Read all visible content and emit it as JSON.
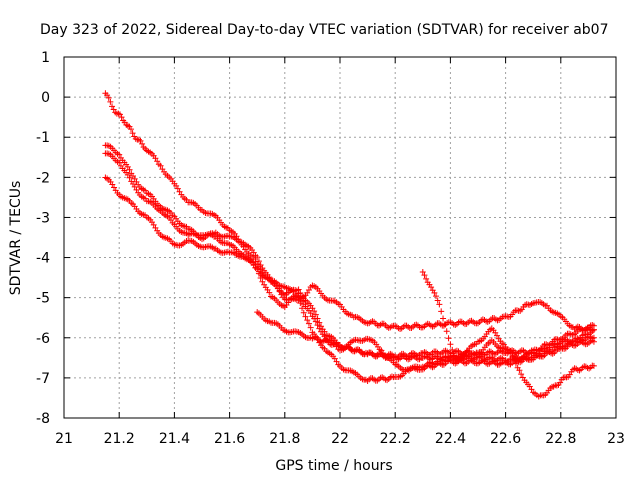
{
  "chart_data": {
    "type": "scatter",
    "title": "Day 323 of 2022, Sidereal Day-to-day VTEC variation (SDTVAR) for receiver ab07",
    "xlabel": "GPS time / hours",
    "ylabel": "SDTVAR / TECUs",
    "xlim": [
      21,
      23
    ],
    "ylim": [
      -8,
      1
    ],
    "xticks": [
      21,
      21.2,
      21.4,
      21.6,
      21.8,
      22,
      22.2,
      22.4,
      22.6,
      22.8,
      23
    ],
    "yticks": [
      1,
      0,
      -1,
      -2,
      -3,
      -4,
      -5,
      -6,
      -7,
      -8
    ],
    "xtick_labels": [
      "21",
      "21.2",
      "21.4",
      "21.6",
      "21.8",
      "22",
      "22.2",
      "22.4",
      "22.6",
      "22.8",
      "23"
    ],
    "ytick_labels": [
      "1",
      "0",
      "-1",
      "-2",
      "-3",
      "-4",
      "-5",
      "-6",
      "-7",
      "-8"
    ],
    "grid": true,
    "marker": "plus",
    "color": "#ff0000",
    "series": [
      {
        "name": "satellite-1",
        "points": [
          [
            21.15,
            0.1
          ],
          [
            21.18,
            -0.3
          ],
          [
            21.22,
            -0.6
          ],
          [
            21.26,
            -1.0
          ],
          [
            21.3,
            -1.3
          ],
          [
            21.35,
            -1.7
          ],
          [
            21.4,
            -2.2
          ],
          [
            21.45,
            -2.6
          ],
          [
            21.5,
            -2.8
          ],
          [
            21.55,
            -3.0
          ],
          [
            21.6,
            -3.3
          ],
          [
            21.65,
            -3.7
          ],
          [
            21.7,
            -4.2
          ],
          [
            21.75,
            -4.6
          ],
          [
            21.8,
            -5.0
          ],
          [
            21.85,
            -5.1
          ],
          [
            21.9,
            -4.7
          ],
          [
            21.95,
            -5.0
          ],
          [
            22.0,
            -5.2
          ],
          [
            22.05,
            -5.5
          ],
          [
            22.1,
            -5.6
          ],
          [
            22.2,
            -5.75
          ],
          [
            22.3,
            -5.7
          ],
          [
            22.4,
            -5.65
          ],
          [
            22.5,
            -5.6
          ],
          [
            22.6,
            -5.5
          ],
          [
            22.7,
            -5.1
          ],
          [
            22.75,
            -5.2
          ],
          [
            22.8,
            -5.5
          ],
          [
            22.85,
            -5.75
          ],
          [
            22.92,
            -5.8
          ]
        ]
      },
      {
        "name": "satellite-2",
        "points": [
          [
            21.15,
            -1.2
          ],
          [
            21.2,
            -1.4
          ],
          [
            21.25,
            -2.0
          ],
          [
            21.3,
            -2.4
          ],
          [
            21.35,
            -2.7
          ],
          [
            21.4,
            -3.0
          ],
          [
            21.45,
            -3.3
          ],
          [
            21.5,
            -3.5
          ],
          [
            21.55,
            -3.4
          ],
          [
            21.6,
            -3.5
          ],
          [
            21.65,
            -3.6
          ],
          [
            21.7,
            -4.0
          ],
          [
            21.75,
            -4.6
          ],
          [
            21.8,
            -4.9
          ],
          [
            21.85,
            -4.8
          ],
          [
            21.9,
            -5.3
          ],
          [
            21.95,
            -5.9
          ],
          [
            22.0,
            -6.2
          ],
          [
            22.1,
            -6.4
          ],
          [
            22.2,
            -6.45
          ],
          [
            22.3,
            -6.4
          ],
          [
            22.4,
            -6.35
          ],
          [
            22.5,
            -6.4
          ],
          [
            22.6,
            -6.35
          ],
          [
            22.7,
            -6.35
          ],
          [
            22.8,
            -6.0
          ],
          [
            22.92,
            -5.7
          ]
        ]
      },
      {
        "name": "satellite-3",
        "points": [
          [
            21.15,
            -1.4
          ],
          [
            21.2,
            -1.6
          ],
          [
            21.25,
            -2.2
          ],
          [
            21.3,
            -2.6
          ],
          [
            21.35,
            -2.8
          ],
          [
            21.4,
            -3.2
          ],
          [
            21.45,
            -3.45
          ],
          [
            21.5,
            -3.4
          ],
          [
            21.55,
            -3.5
          ],
          [
            21.6,
            -3.7
          ],
          [
            21.65,
            -3.9
          ],
          [
            21.7,
            -4.3
          ],
          [
            21.75,
            -5.0
          ],
          [
            21.8,
            -5.2
          ],
          [
            21.85,
            -4.9
          ],
          [
            21.9,
            -5.5
          ],
          [
            21.95,
            -6.0
          ],
          [
            22.0,
            -6.3
          ],
          [
            22.05,
            -6.1
          ],
          [
            22.1,
            -6.0
          ],
          [
            22.15,
            -6.3
          ],
          [
            22.2,
            -6.7
          ],
          [
            22.25,
            -6.8
          ],
          [
            22.3,
            -6.7
          ],
          [
            22.4,
            -6.5
          ],
          [
            22.5,
            -6.4
          ],
          [
            22.55,
            -6.1
          ],
          [
            22.6,
            -6.3
          ],
          [
            22.65,
            -6.5
          ],
          [
            22.7,
            -6.4
          ],
          [
            22.8,
            -6.1
          ],
          [
            22.92,
            -6.0
          ]
        ]
      },
      {
        "name": "satellite-4",
        "points": [
          [
            21.15,
            -2.0
          ],
          [
            21.2,
            -2.4
          ],
          [
            21.25,
            -2.7
          ],
          [
            21.3,
            -3.0
          ],
          [
            21.35,
            -3.4
          ],
          [
            21.4,
            -3.7
          ],
          [
            21.45,
            -3.6
          ],
          [
            21.5,
            -3.7
          ],
          [
            21.55,
            -3.8
          ],
          [
            21.6,
            -3.9
          ],
          [
            21.65,
            -3.95
          ],
          [
            21.7,
            -4.3
          ],
          [
            21.75,
            -4.6
          ],
          [
            21.8,
            -4.7
          ],
          [
            21.85,
            -5.0
          ],
          [
            21.9,
            -5.9
          ],
          [
            21.95,
            -6.3
          ],
          [
            22.0,
            -6.7
          ],
          [
            22.05,
            -6.9
          ],
          [
            22.1,
            -7.05
          ],
          [
            22.2,
            -7.0
          ],
          [
            22.25,
            -6.8
          ],
          [
            22.3,
            -6.75
          ],
          [
            22.4,
            -6.6
          ],
          [
            22.5,
            -6.6
          ],
          [
            22.6,
            -6.65
          ],
          [
            22.7,
            -6.5
          ],
          [
            22.8,
            -6.3
          ],
          [
            22.92,
            -5.8
          ]
        ]
      },
      {
        "name": "satellite-5",
        "points": [
          [
            21.7,
            -5.4
          ],
          [
            21.75,
            -5.6
          ],
          [
            21.8,
            -5.8
          ],
          [
            21.85,
            -5.9
          ],
          [
            21.9,
            -6.0
          ],
          [
            22.0,
            -6.2
          ],
          [
            22.1,
            -6.4
          ],
          [
            22.2,
            -6.5
          ],
          [
            22.3,
            -6.5
          ],
          [
            22.4,
            -6.5
          ],
          [
            22.5,
            -6.5
          ],
          [
            22.6,
            -6.55
          ],
          [
            22.7,
            -6.5
          ],
          [
            22.8,
            -6.2
          ],
          [
            22.92,
            -6.1
          ]
        ]
      },
      {
        "name": "satellite-6",
        "points": [
          [
            22.3,
            -4.4
          ],
          [
            22.33,
            -4.7
          ],
          [
            22.36,
            -5.2
          ],
          [
            22.38,
            -5.7
          ],
          [
            22.4,
            -6.2
          ],
          [
            22.42,
            -6.6
          ],
          [
            22.45,
            -6.4
          ],
          [
            22.5,
            -6.1
          ],
          [
            22.55,
            -5.8
          ],
          [
            22.6,
            -6.2
          ],
          [
            22.65,
            -6.8
          ],
          [
            22.7,
            -7.4
          ],
          [
            22.72,
            -7.5
          ],
          [
            22.78,
            -7.2
          ],
          [
            22.85,
            -6.8
          ],
          [
            22.92,
            -6.7
          ]
        ]
      }
    ]
  }
}
